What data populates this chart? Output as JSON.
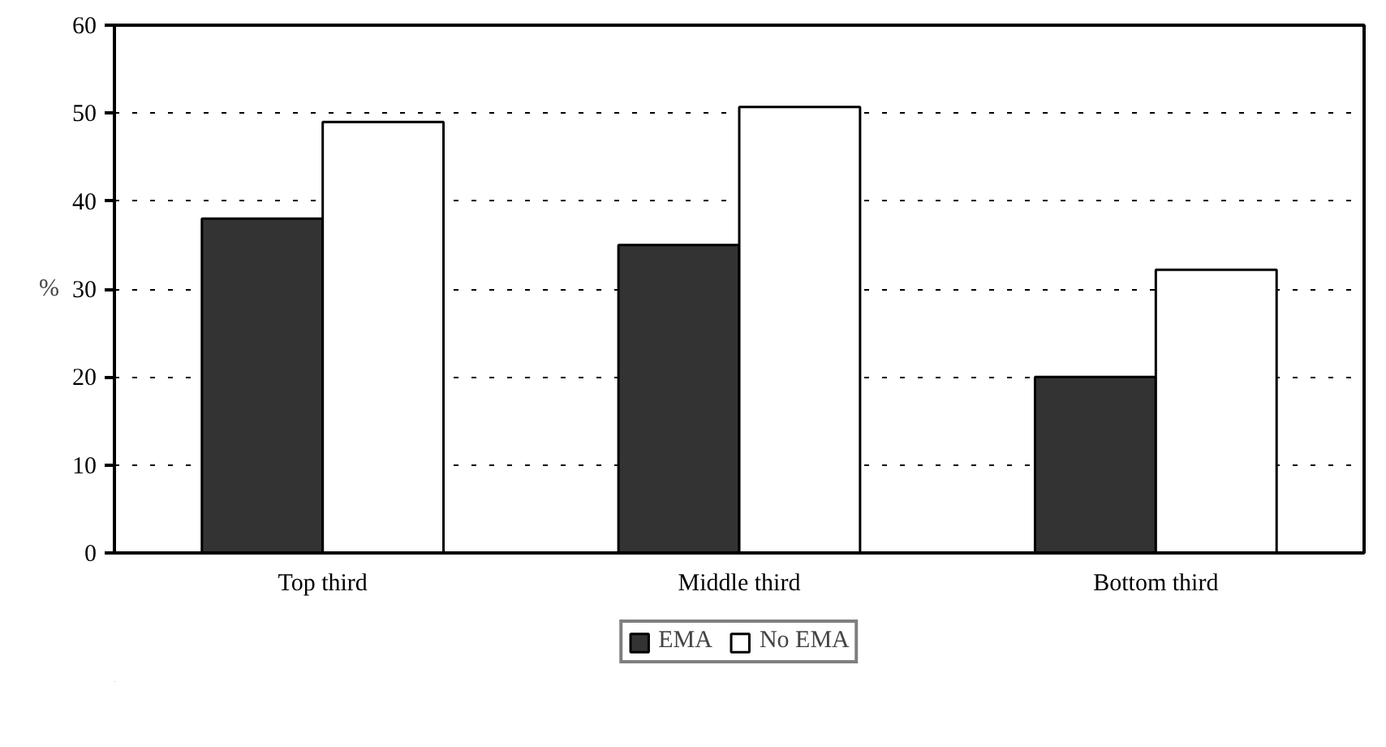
{
  "chart_data": {
    "type": "bar",
    "ylabel": "%",
    "categories": [
      "Top third",
      "Middle third",
      "Bottom third"
    ],
    "series": [
      {
        "name": "EMA",
        "color": "#333333",
        "values": [
          38,
          35,
          20
        ]
      },
      {
        "name": "No EMA",
        "color": "#ffffff",
        "values": [
          49,
          50.7,
          32.2
        ]
      }
    ],
    "ylim": [
      0,
      60
    ],
    "yticks": [
      0,
      10,
      20,
      30,
      40,
      50,
      60
    ],
    "grid": "y",
    "legend": "bottom"
  }
}
